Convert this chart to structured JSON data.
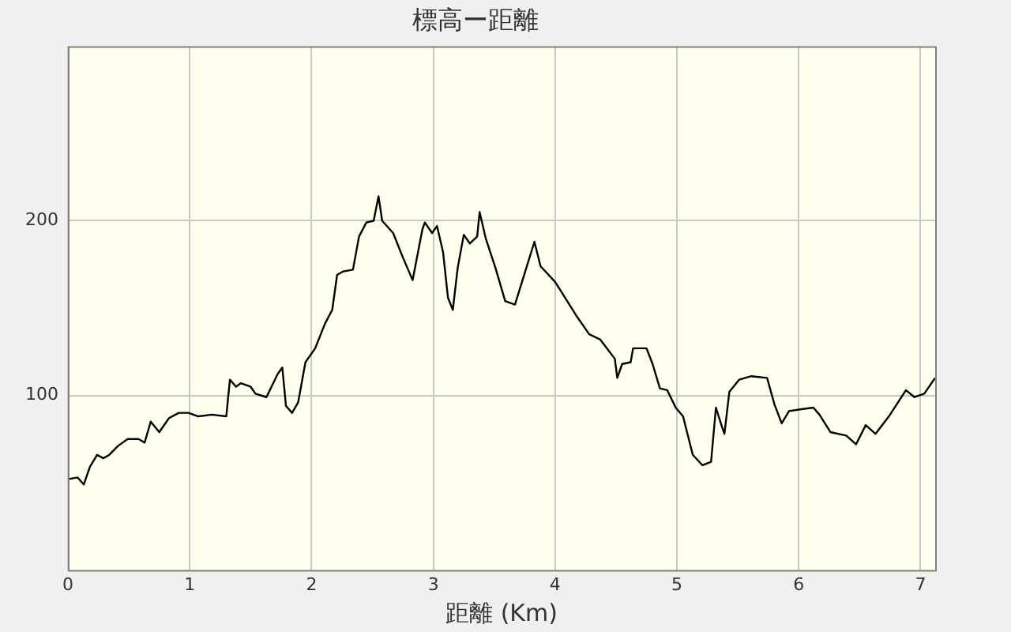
{
  "chart_data": {
    "type": "line",
    "title": "標高ー距離",
    "xlabel": "距離 (Km)",
    "xlim": [
      0,
      7.12
    ],
    "xticks": [
      0,
      1,
      2,
      3,
      4,
      5,
      6,
      7
    ],
    "ylim": [
      0,
      300
    ],
    "yticks": [
      100,
      200
    ],
    "grid": true,
    "legend": false,
    "marker": "none",
    "line_style": "solid",
    "series": [
      {
        "color": "#000000",
        "x": [
          0,
          0.08,
          0.13,
          0.18,
          0.24,
          0.29,
          0.34,
          0.41,
          0.49,
          0.58,
          0.63,
          0.68,
          0.75,
          0.83,
          0.91,
          0.99,
          1.07,
          1.18,
          1.3,
          1.33,
          1.38,
          1.42,
          1.5,
          1.54,
          1.63,
          1.72,
          1.76,
          1.79,
          1.84,
          1.89,
          1.95,
          2.03,
          2.11,
          2.17,
          2.21,
          2.26,
          2.34,
          2.39,
          2.45,
          2.51,
          2.55,
          2.58,
          2.67,
          2.75,
          2.83,
          2.91,
          2.93,
          2.99,
          3.03,
          3.08,
          3.12,
          3.16,
          3.2,
          3.25,
          3.3,
          3.36,
          3.38,
          3.43,
          3.51,
          3.59,
          3.67,
          3.75,
          3.83,
          3.88,
          4.0,
          4.09,
          4.18,
          4.28,
          4.37,
          4.49,
          4.51,
          4.55,
          4.62,
          4.64,
          4.75,
          4.8,
          4.86,
          4.92,
          4.99,
          5.05,
          5.13,
          5.21,
          5.28,
          5.32,
          5.37,
          5.39,
          5.43,
          5.51,
          5.61,
          5.74,
          5.8,
          5.86,
          5.92,
          6.01,
          6.12,
          6.17,
          6.26,
          6.39,
          6.47,
          6.55,
          6.63,
          6.74,
          6.88,
          6.95,
          7.03,
          7.09,
          7.12
        ],
        "values": [
          52,
          53,
          49,
          59,
          66,
          64,
          66,
          71,
          75,
          75,
          73,
          85,
          79,
          87,
          90,
          90,
          88,
          89,
          88,
          109,
          105,
          107,
          105,
          101,
          99,
          112,
          116,
          94,
          90,
          96,
          119,
          127,
          141,
          149,
          169,
          171,
          172,
          191,
          199,
          200,
          214,
          200,
          193,
          179,
          166,
          195,
          199,
          193,
          197,
          182,
          156,
          149,
          173,
          192,
          187,
          191,
          205,
          190,
          173,
          154,
          152,
          170,
          188,
          174,
          165,
          155,
          145,
          135,
          132,
          121,
          110,
          118,
          119,
          127,
          127,
          118,
          104,
          103,
          93,
          88,
          66,
          60,
          62,
          93,
          82,
          78,
          102,
          109,
          111,
          110,
          95,
          84,
          91,
          92,
          93,
          89,
          79,
          77,
          72,
          83,
          78,
          88,
          103,
          99,
          101,
          107,
          110
        ]
      }
    ]
  }
}
